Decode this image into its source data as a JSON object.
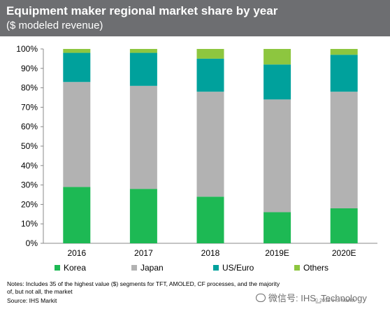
{
  "header": {
    "title": "Equipment maker regional market share by year",
    "subtitle": "($ modeled revenue)"
  },
  "chart_data": {
    "type": "bar",
    "stacked": true,
    "categories": [
      "2016",
      "2017",
      "2018",
      "2019E",
      "2020E"
    ],
    "series": [
      {
        "name": "Korea",
        "color": "#1db954",
        "values": [
          29,
          28,
          24,
          16,
          18
        ]
      },
      {
        "name": "Japan",
        "color": "#b2b2b2",
        "values": [
          54,
          53,
          54,
          58,
          60
        ]
      },
      {
        "name": "US/Euro",
        "color": "#00a19c",
        "values": [
          15,
          17,
          17,
          18,
          19
        ]
      },
      {
        "name": "Others",
        "color": "#8dc63f",
        "values": [
          2,
          2,
          5,
          8,
          3
        ]
      }
    ],
    "yticks": [
      "0%",
      "10%",
      "20%",
      "30%",
      "40%",
      "50%",
      "60%",
      "70%",
      "80%",
      "90%",
      "100%"
    ],
    "ylim": [
      0,
      100
    ],
    "grid": false,
    "legend_position": "bottom"
  },
  "notes": "Notes: Includes 35 of the highest value ($) segments  for TFT, AMOLED, CF processes, and the majority of, but not all, the market",
  "source": "Source: IHS Markit",
  "watermark": "微信号: IHS_Technology",
  "copyright": "© 2018 IHS Markit"
}
